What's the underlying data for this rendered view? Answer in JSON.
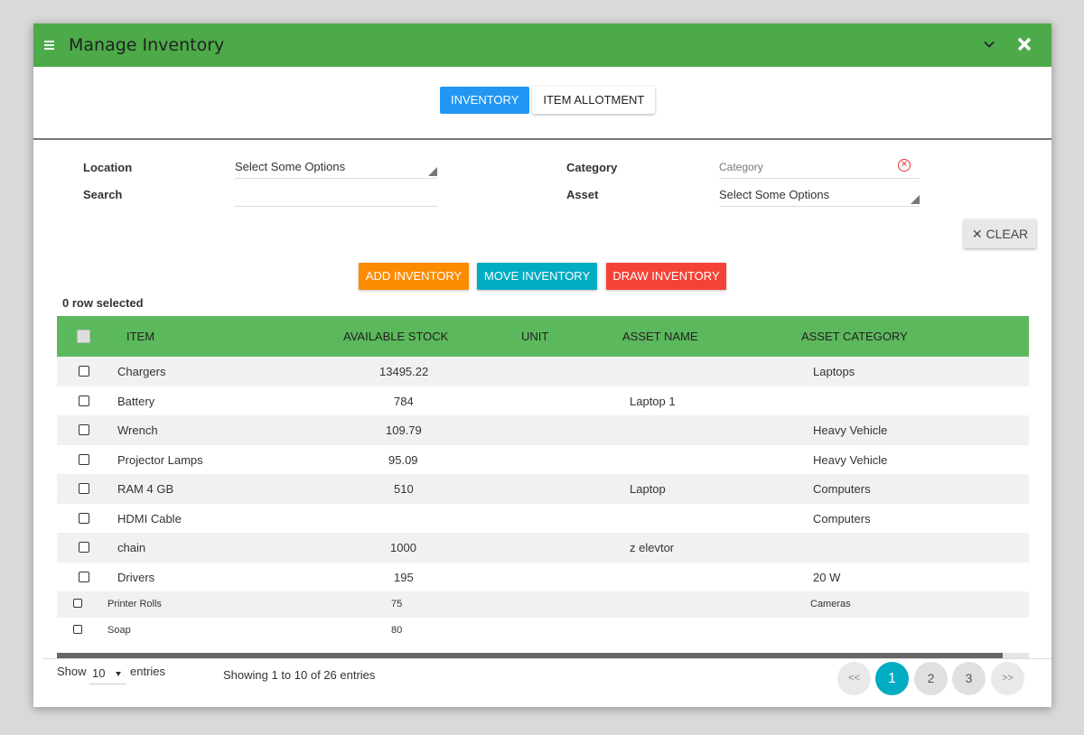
{
  "window": {
    "title": "Manage Inventory"
  },
  "icons": {
    "menu": "hamburger-menu-icon",
    "collapse": "chevron-down-icon",
    "close": "close-icon",
    "clear_field": "clear-circle-icon"
  },
  "colors": {
    "header": "#4caa49",
    "table_header": "#5cb85c",
    "tab_active": "#2196f3",
    "add": "#fb8c00",
    "move": "#00acc1",
    "draw": "#f44336"
  },
  "tabs": [
    {
      "label": "INVENTORY",
      "active": true
    },
    {
      "label": "ITEM ALLOTMENT",
      "active": false
    }
  ],
  "filters": {
    "location_label": "Location",
    "location_value": "Select Some Options",
    "search_label": "Search",
    "search_value": "",
    "category_label": "Category",
    "category_placeholder": "Category",
    "asset_label": "Asset",
    "asset_value": "Select Some Options",
    "clear_label": "✕ CLEAR"
  },
  "actions": {
    "add": "ADD INVENTORY",
    "move": "MOVE INVENTORY",
    "draw": "DRAW INVENTORY"
  },
  "selection": {
    "text": "0 row selected"
  },
  "table": {
    "columns": [
      "ITEM",
      "AVAILABLE STOCK",
      "UNIT",
      "ASSET NAME",
      "ASSET CATEGORY"
    ],
    "rows": [
      {
        "item": "Chargers",
        "stock": "13495.22",
        "unit": "",
        "asset_name": "",
        "asset_category": "Laptops"
      },
      {
        "item": "Battery",
        "stock": "784",
        "unit": "",
        "asset_name": "Laptop 1",
        "asset_category": ""
      },
      {
        "item": "Wrench",
        "stock": "109.79",
        "unit": "",
        "asset_name": "",
        "asset_category": "Heavy Vehicle"
      },
      {
        "item": "Projector Lamps",
        "stock": "95.09",
        "unit": "",
        "asset_name": "",
        "asset_category": "Heavy Vehicle"
      },
      {
        "item": "RAM 4 GB",
        "stock": "510",
        "unit": "",
        "asset_name": "Laptop",
        "asset_category": "Computers"
      },
      {
        "item": "HDMI Cable",
        "stock": "",
        "unit": "",
        "asset_name": "",
        "asset_category": "Computers"
      },
      {
        "item": "chain",
        "stock": "1000",
        "unit": "",
        "asset_name": "z elevtor",
        "asset_category": ""
      },
      {
        "item": "Drivers",
        "stock": "195",
        "unit": "",
        "asset_name": "",
        "asset_category": "20 W"
      },
      {
        "item": "Printer Rolls",
        "stock": "75",
        "unit": "",
        "asset_name": "",
        "asset_category": "Cameras"
      },
      {
        "item": "Soap",
        "stock": "80",
        "unit": "",
        "asset_name": "",
        "asset_category": ""
      }
    ]
  },
  "footer": {
    "show_label": "Show",
    "entries_value": "10",
    "entries_label": "entries",
    "showing_text": "Showing 1 to 10 of 26 entries"
  },
  "pagination": {
    "prev": "<<",
    "pages": [
      "1",
      "2",
      "3"
    ],
    "current": "1",
    "next": ">>"
  }
}
